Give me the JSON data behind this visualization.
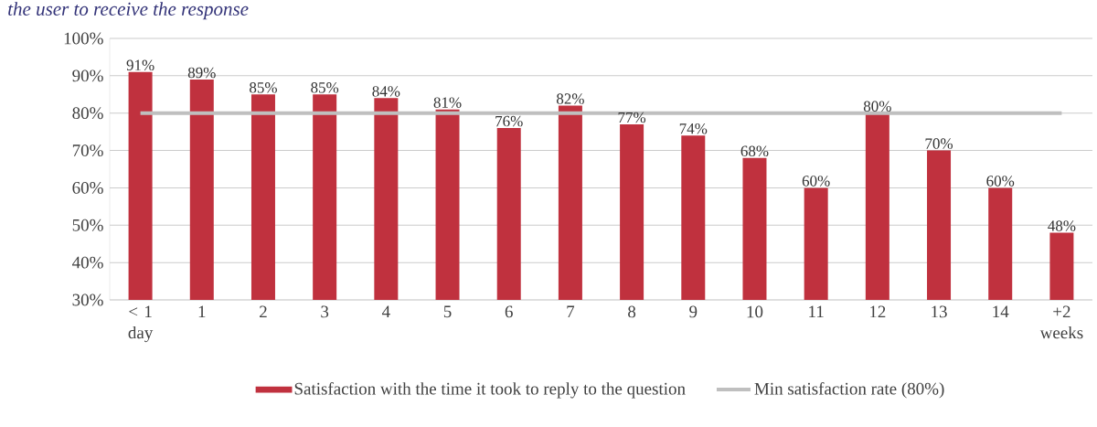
{
  "chart_data": {
    "type": "bar",
    "title": "the user to receive the response",
    "categories": [
      "< 1 day",
      "1",
      "2",
      "3",
      "4",
      "5",
      "6",
      "7",
      "8",
      "9",
      "10",
      "11",
      "12",
      "13",
      "14",
      "+2 weeks"
    ],
    "series": [
      {
        "name": "Satisfaction with the time it took to reply to the question",
        "color": "#c0313e",
        "values": [
          91,
          89,
          85,
          85,
          84,
          81,
          76,
          82,
          77,
          74,
          68,
          60,
          80,
          70,
          60,
          48
        ],
        "value_labels": [
          "91%",
          "89%",
          "85%",
          "85%",
          "84%",
          "81%",
          "76%",
          "82%",
          "77%",
          "74%",
          "68%",
          "60%",
          "80%",
          "70%",
          "60%",
          "48%"
        ]
      },
      {
        "name": "Min satisfaction rate (80%)",
        "type": "line",
        "color": "#bfbfbf",
        "values": [
          80,
          80,
          80,
          80,
          80,
          80,
          80,
          80,
          80,
          80,
          80,
          80,
          80,
          80,
          80,
          80
        ]
      }
    ],
    "ylim": [
      30,
      100
    ],
    "yticks": [
      {
        "value": 30,
        "label": "30%"
      },
      {
        "value": 40,
        "label": "40%"
      },
      {
        "value": 50,
        "label": "50%"
      },
      {
        "value": 60,
        "label": "60%"
      },
      {
        "value": 70,
        "label": "70%"
      },
      {
        "value": 80,
        "label": "80%"
      },
      {
        "value": 90,
        "label": "90%"
      },
      {
        "value": 100,
        "label": "100%"
      }
    ],
    "grid": "y",
    "legend": "bottom"
  }
}
